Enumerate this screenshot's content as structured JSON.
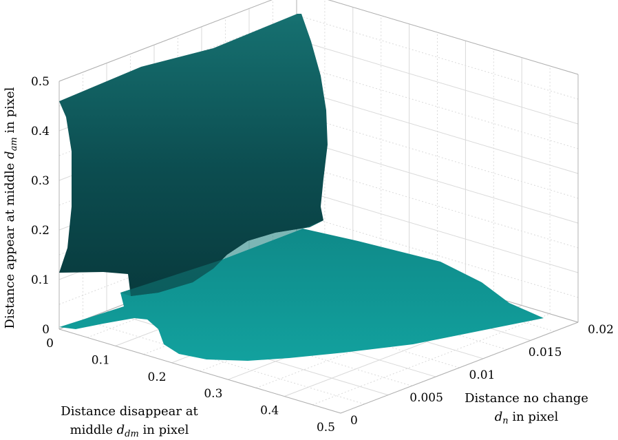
{
  "chart_data": {
    "type": "surface3d",
    "title": "",
    "x_axis": {
      "label": "Distance no change",
      "label_line2_pre": "",
      "label_line2_var": "d",
      "label_line2_sub": "n",
      "label_line2_post": " in pixel",
      "ticks": [
        "0",
        "0.005",
        "0.01",
        "0.015",
        "0.02"
      ],
      "range": [
        0,
        0.02
      ]
    },
    "y_axis": {
      "label": "Distance disappear at",
      "label_line2_pre": "middle ",
      "label_line2_var": "d",
      "label_line2_sub": "dm",
      "label_line2_post": " in pixel",
      "ticks": [
        "0",
        "0.1",
        "0.2",
        "0.3",
        "0.4",
        "0.5"
      ],
      "range": [
        0,
        0.5
      ]
    },
    "z_axis": {
      "label_pre": "Distance appear at middle ",
      "label_var": "d",
      "label_sub": "am",
      "label_post": " in pixel",
      "ticks": [
        "0",
        "0.1",
        "0.2",
        "0.3",
        "0.4",
        "0.5"
      ],
      "range": [
        0,
        0.5
      ]
    },
    "grid": true,
    "colors": {
      "surface_dark": "#0a3f42",
      "surface_mid": "#136c6e",
      "surface_light": "#119e9c",
      "grid": "#d9d9d9",
      "axis": "#b0b0b0"
    }
  }
}
